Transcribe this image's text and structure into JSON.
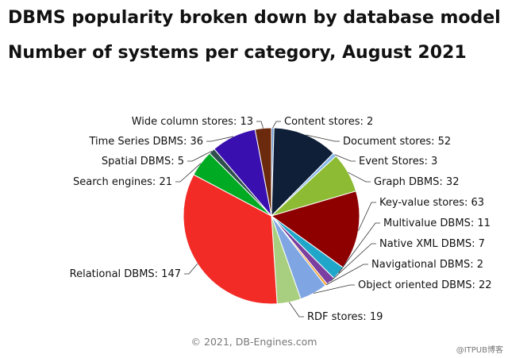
{
  "title": "DBMS popularity broken down by database model",
  "subtitle": "Number of systems per category, August 2021",
  "copyright": "© 2021, DB-Engines.com",
  "watermark": "@ITPUB博客",
  "chart_data": {
    "type": "pie",
    "title": "DBMS popularity broken down by database model",
    "subtitle": "Number of systems per category, August 2021",
    "slices": [
      {
        "label": "Content stores",
        "value": 2,
        "color": "#6c9bd2",
        "display": "Content stores: 2"
      },
      {
        "label": "Document stores",
        "value": 52,
        "color": "#0f1f38",
        "display": "Document stores: 52"
      },
      {
        "label": "Event Stores",
        "value": 3,
        "color": "#87b7ea",
        "display": "Event Stores: 3"
      },
      {
        "label": "Graph DBMS",
        "value": 32,
        "color": "#8dbb33",
        "display": "Graph DBMS: 32"
      },
      {
        "label": "Key-value stores",
        "value": 63,
        "color": "#8e0000",
        "display": "Key-value stores: 63"
      },
      {
        "label": "Multivalue DBMS",
        "value": 11,
        "color": "#1fa6c9",
        "display": "Multivalue DBMS: 11"
      },
      {
        "label": "Native XML DBMS",
        "value": 7,
        "color": "#7a3fa0",
        "display": "Native XML DBMS: 7"
      },
      {
        "label": "Navigational DBMS",
        "value": 2,
        "color": "#f29e2b",
        "display": "Navigational DBMS: 2"
      },
      {
        "label": "Object oriented DBMS",
        "value": 22,
        "color": "#7fa6e3",
        "display": "Object oriented DBMS: 22"
      },
      {
        "label": "RDF stores",
        "value": 19,
        "color": "#a8cf7f",
        "display": "RDF stores: 19"
      },
      {
        "label": "Relational DBMS",
        "value": 147,
        "color": "#f22b26",
        "display": "Relational DBMS: 147"
      },
      {
        "label": "Search engines",
        "value": 21,
        "color": "#00aa22",
        "display": "Search engines: 21"
      },
      {
        "label": "Spatial DBMS",
        "value": 5,
        "color": "#2f4f4f",
        "display": "Spatial DBMS: 5"
      },
      {
        "label": "Time Series DBMS",
        "value": 36,
        "color": "#3a0fb0",
        "display": "Time Series DBMS: 36"
      },
      {
        "label": "Wide column stores",
        "value": 13,
        "color": "#6b2a0e",
        "display": "Wide column stores: 13"
      }
    ]
  }
}
